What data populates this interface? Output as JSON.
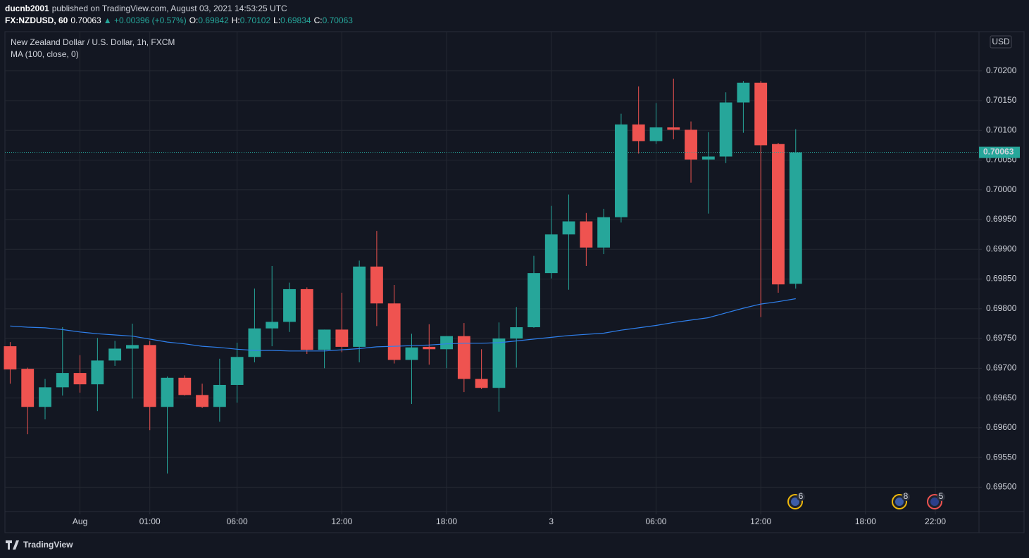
{
  "header": {
    "author": "ducnb2001",
    "published": "published on TradingView.com, August 03, 2021 14:53:25 UTC",
    "symbol": "FX:NZDUSD, 60",
    "last": "0.70063",
    "change": "▲ +0.00396 (+0.57%)",
    "ohlc": [
      {
        "label": "O:",
        "value": "0.69842"
      },
      {
        "label": "H:",
        "value": "0.70102"
      },
      {
        "label": "L:",
        "value": "0.69834"
      },
      {
        "label": "C:",
        "value": "0.70063"
      }
    ]
  },
  "chart_data": {
    "type": "candlestick",
    "title": "New Zealand Dollar / U.S. Dollar, 1h, FXCM",
    "currency": "USD",
    "up_color": "#26a69a",
    "down_color": "#ef5350",
    "open": [
      0.69737,
      0.69699,
      0.69635,
      0.69668,
      0.69692,
      0.69673,
      0.69713,
      0.69733,
      0.69739,
      0.69635,
      0.69684,
      0.69655,
      0.69635,
      0.69672,
      0.69719,
      0.69767,
      0.69778,
      0.69833,
      0.69731,
      0.69765,
      0.69736,
      0.69871,
      0.69809,
      0.69714,
      0.69736,
      0.69732,
      0.69754,
      0.69682,
      0.69667,
      0.6975,
      0.69769,
      0.6986,
      0.69925,
      0.69947,
      0.69903,
      0.69954,
      0.7011,
      0.70082,
      0.70105,
      0.70101,
      0.70051,
      0.70056,
      0.70147,
      0.7018,
      0.70077,
      0.69842
    ],
    "high": [
      0.69744,
      0.69701,
      0.69682,
      0.69769,
      0.69722,
      0.69751,
      0.69746,
      0.69775,
      0.69746,
      0.69686,
      0.69688,
      0.69674,
      0.69716,
      0.69743,
      0.69834,
      0.69872,
      0.69844,
      0.69836,
      0.69765,
      0.69827,
      0.69881,
      0.69931,
      0.6984,
      0.69758,
      0.69774,
      0.69754,
      0.69776,
      0.69732,
      0.69777,
      0.69803,
      0.69889,
      0.69973,
      0.69992,
      0.69961,
      0.69968,
      0.70128,
      0.70174,
      0.70146,
      0.70187,
      0.70115,
      0.70097,
      0.70164,
      0.70183,
      0.70183,
      0.70079,
      0.70102
    ],
    "low": [
      0.69674,
      0.69589,
      0.69614,
      0.69654,
      0.69659,
      0.69628,
      0.69704,
      0.69649,
      0.69596,
      0.69523,
      0.69654,
      0.69633,
      0.6961,
      0.69642,
      0.6971,
      0.69737,
      0.69761,
      0.69724,
      0.697,
      0.69727,
      0.6971,
      0.69771,
      0.69708,
      0.6964,
      0.69706,
      0.697,
      0.6966,
      0.69665,
      0.69627,
      0.69701,
      0.69768,
      0.69851,
      0.69832,
      0.69872,
      0.69892,
      0.69945,
      0.70061,
      0.70077,
      0.70085,
      0.70012,
      0.6996,
      0.70045,
      0.70096,
      0.69786,
      0.69827,
      0.69834
    ],
    "close": [
      0.69698,
      0.69635,
      0.69668,
      0.69692,
      0.69673,
      0.69713,
      0.69733,
      0.69739,
      0.69635,
      0.69684,
      0.69655,
      0.69635,
      0.69672,
      0.69719,
      0.69767,
      0.69778,
      0.69833,
      0.69731,
      0.69765,
      0.69736,
      0.69871,
      0.69809,
      0.69714,
      0.69735,
      0.69732,
      0.69754,
      0.69682,
      0.69667,
      0.6975,
      0.69769,
      0.6986,
      0.69925,
      0.69947,
      0.69903,
      0.69954,
      0.7011,
      0.70082,
      0.70105,
      0.70101,
      0.70051,
      0.70056,
      0.70147,
      0.7018,
      0.70075,
      0.69841,
      0.70063
    ],
    "series": [
      {
        "name": "MA (100, close, 0)",
        "color": "#2f80ed",
        "values": [
          0.69771,
          0.69769,
          0.69768,
          0.69765,
          0.69761,
          0.69758,
          0.69756,
          0.69754,
          0.69749,
          0.69744,
          0.69741,
          0.69737,
          0.69735,
          0.69732,
          0.6973,
          0.6973,
          0.69729,
          0.69729,
          0.69729,
          0.69731,
          0.69733,
          0.69736,
          0.69737,
          0.69738,
          0.69739,
          0.69741,
          0.69742,
          0.69742,
          0.69743,
          0.69746,
          0.69749,
          0.69752,
          0.69755,
          0.69757,
          0.69759,
          0.69764,
          0.69768,
          0.69772,
          0.69777,
          0.69781,
          0.69785,
          0.69793,
          0.69801,
          0.69808,
          0.69812,
          0.69817
        ]
      }
    ],
    "xlim": [
      -0.3,
      55.5
    ],
    "ylim": [
      0.69459,
      0.70266
    ],
    "xticks": [
      {
        "value": 4,
        "label": "Aug"
      },
      {
        "value": 8,
        "label": "01:00"
      },
      {
        "value": 13,
        "label": "06:00"
      },
      {
        "value": 19,
        "label": "12:00"
      },
      {
        "value": 25,
        "label": "18:00"
      },
      {
        "value": 31,
        "label": "3"
      },
      {
        "value": 37,
        "label": "06:00"
      },
      {
        "value": 43,
        "label": "12:00"
      },
      {
        "value": 49,
        "label": "18:00"
      },
      {
        "value": 53,
        "label": "22:00"
      }
    ],
    "yticks": [
      {
        "value": 0.695,
        "label": "0.69500"
      },
      {
        "value": 0.6955,
        "label": "0.69550"
      },
      {
        "value": 0.696,
        "label": "0.69600"
      },
      {
        "value": 0.6965,
        "label": "0.69650"
      },
      {
        "value": 0.697,
        "label": "0.69700"
      },
      {
        "value": 0.6975,
        "label": "0.69750"
      },
      {
        "value": 0.698,
        "label": "0.69800"
      },
      {
        "value": 0.6985,
        "label": "0.69850"
      },
      {
        "value": 0.699,
        "label": "0.69900"
      },
      {
        "value": 0.6995,
        "label": "0.69950"
      },
      {
        "value": 0.7,
        "label": "0.70000"
      },
      {
        "value": 0.7005,
        "label": "0.70050"
      },
      {
        "value": 0.701,
        "label": "0.70100"
      },
      {
        "value": 0.7015,
        "label": "0.70150"
      },
      {
        "value": 0.702,
        "label": "0.70200"
      }
    ],
    "grid": true
  },
  "events": [
    {
      "label": "6"
    },
    {
      "label": "8"
    },
    {
      "label": "5"
    }
  ],
  "footer": {
    "brand": "TradingView"
  }
}
